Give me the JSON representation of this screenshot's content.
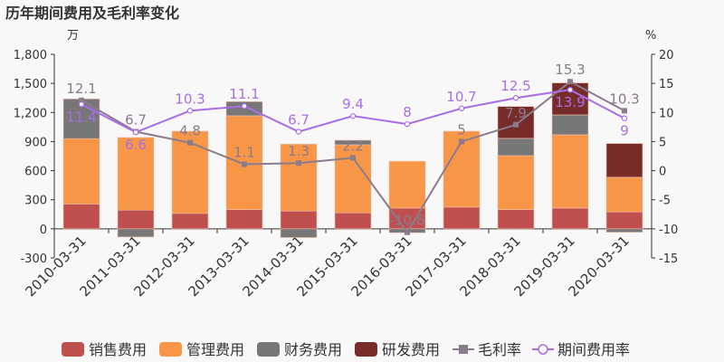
{
  "chart_data": {
    "type": "bar+line",
    "title": "历年期间费用及毛利率变化",
    "left_unit": "万",
    "right_unit": "%",
    "categories": [
      "2010-03-31",
      "2011-03-31",
      "2012-03-31",
      "2013-03-31",
      "2014-03-31",
      "2015-03-31",
      "2016-03-31",
      "2017-03-31",
      "2018-03-31",
      "2019-03-31",
      "2020-03-31"
    ],
    "left_axis": {
      "min": -300,
      "max": 1800,
      "ticks": [
        "-300",
        "0",
        "300",
        "600",
        "900",
        "1,200",
        "1,500",
        "1,800"
      ]
    },
    "right_axis": {
      "min": -15,
      "max": 20,
      "ticks": [
        "-15",
        "-10",
        "-5",
        "0",
        "5",
        "10",
        "15",
        "20"
      ]
    },
    "bar_series": [
      {
        "name": "销售费用",
        "color": "#c0504d",
        "values": [
          255,
          193,
          159,
          199,
          184,
          165,
          214,
          224,
          199,
          214,
          174
        ]
      },
      {
        "name": "管理费用",
        "color": "#f79646",
        "values": [
          675,
          749,
          848,
          967,
          690,
          702,
          483,
          783,
          556,
          756,
          358
        ]
      },
      {
        "name": "财务费用",
        "color": "#777777",
        "values": [
          410,
          -84,
          0,
          146,
          -90,
          47,
          -40,
          0,
          178,
          205,
          -35
        ]
      },
      {
        "name": "研发费用",
        "color": "#772c2a",
        "values": [
          0,
          0,
          0,
          0,
          0,
          0,
          0,
          0,
          329,
          330,
          348
        ]
      }
    ],
    "line_series": [
      {
        "name": "毛利率",
        "color": "#8a7b8d",
        "marker": "square",
        "values": [
          12.1,
          6.7,
          4.8,
          1.1,
          1.3,
          2.2,
          -10.6,
          5,
          7.9,
          15.3,
          10.3
        ]
      },
      {
        "name": "期间费用率",
        "color": "#a86ee8",
        "marker": "circle",
        "values": [
          11.4,
          6.6,
          10.3,
          11.1,
          6.7,
          9.4,
          8,
          10.7,
          12.5,
          13.9,
          9
        ]
      }
    ],
    "grid": false,
    "legend": "bottom"
  }
}
